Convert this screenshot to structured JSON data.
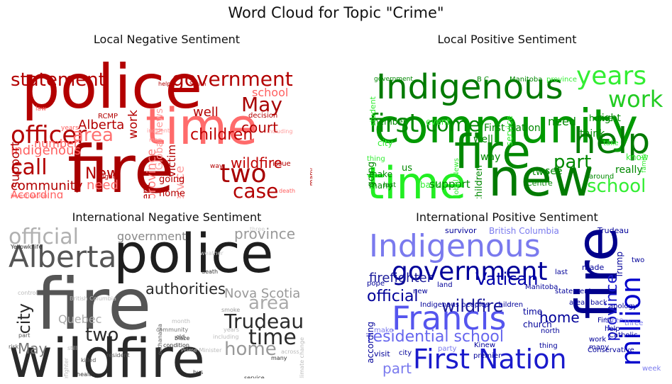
{
  "figure_title": "Word Cloud for Topic \"Crime\"",
  "panels": [
    {
      "title": "Local Negative Sentiment",
      "words": [
        {
          "t": "police",
          "c": "#b30000"
        },
        {
          "t": "time",
          "c": "#ff6b6b"
        },
        {
          "t": "fire",
          "c": "#a80000"
        },
        {
          "t": "officer",
          "c": "#b30000"
        },
        {
          "t": "government",
          "c": "#b30000"
        },
        {
          "t": "statement",
          "c": "#b30000"
        },
        {
          "t": "children",
          "c": "#c00000"
        },
        {
          "t": "area",
          "c": "#ff7070"
        },
        {
          "t": "May",
          "c": "#a80000"
        },
        {
          "t": "call",
          "c": "#b30000"
        },
        {
          "t": "two",
          "c": "#a80000"
        },
        {
          "t": "case",
          "c": "#b30000"
        },
        {
          "t": "community",
          "c": "#b30000"
        },
        {
          "t": "New",
          "c": "#b30000"
        },
        {
          "t": "Alberta",
          "c": "#b30000"
        },
        {
          "t": "Indigenous",
          "c": "#ff6060"
        },
        {
          "t": "school",
          "c": "#ff6060"
        },
        {
          "t": "well",
          "c": "#b30000"
        },
        {
          "t": "court",
          "c": "#b30000"
        },
        {
          "t": "wildfire",
          "c": "#c00000"
        },
        {
          "t": "support",
          "c": "#b30000"
        },
        {
          "t": "number",
          "c": "#ff6060"
        },
        {
          "t": "need",
          "c": "#ff7070"
        },
        {
          "t": "According",
          "c": "#ff6060"
        },
        {
          "t": "work",
          "c": "#b30000"
        },
        {
          "t": "Global News",
          "c": "#ff9a9a"
        },
        {
          "t": "victim",
          "c": "#b30000"
        },
        {
          "t": "Service",
          "c": "#ff9a9a"
        },
        {
          "t": "province",
          "c": "#ff8080"
        },
        {
          "t": "per cent",
          "c": "#b30000"
        },
        {
          "t": "public",
          "c": "#b30000"
        },
        {
          "t": "home",
          "c": "#b30000"
        },
        {
          "t": "going",
          "c": "#b30000"
        },
        {
          "t": "RCMP",
          "c": "#b30000"
        },
        {
          "t": "Smith",
          "c": "#b30000"
        },
        {
          "t": "help",
          "c": "#b30000"
        },
        {
          "t": "decision",
          "c": "#b30000"
        },
        {
          "t": "including",
          "c": "#ff9a9a"
        },
        {
          "t": "incident",
          "c": "#ff9a9a"
        },
        {
          "t": "man",
          "c": "#ff9a9a"
        },
        {
          "t": "law",
          "c": "#ff6060"
        },
        {
          "t": "years",
          "c": "#ff6060"
        },
        {
          "t": "right",
          "c": "#b30000"
        },
        {
          "t": "way",
          "c": "#b30000"
        },
        {
          "t": "issue",
          "c": "#b30000"
        },
        {
          "t": "many",
          "c": "#b30000"
        },
        {
          "t": "death",
          "c": "#ff6060"
        },
        {
          "t": "investigation",
          "c": "#ff6060"
        },
        {
          "t": "charge",
          "c": "#ff6060"
        },
        {
          "t": "B C",
          "c": "#ff6060"
        }
      ]
    },
    {
      "title": "Local Positive Sentiment",
      "words": [
        {
          "t": "community",
          "c": "#009900"
        },
        {
          "t": "Indigenous",
          "c": "#007a00"
        },
        {
          "t": "fire",
          "c": "#008800"
        },
        {
          "t": "new",
          "c": "#007a00"
        },
        {
          "t": "time",
          "c": "#22ee22"
        },
        {
          "t": "help",
          "c": "#007a00"
        },
        {
          "t": "years",
          "c": "#33ee33"
        },
        {
          "t": "work",
          "c": "#22cc22"
        },
        {
          "t": "first",
          "c": "#008800"
        },
        {
          "t": "come",
          "c": "#008800"
        },
        {
          "t": "part",
          "c": "#008800"
        },
        {
          "t": "school",
          "c": "#33ee33"
        },
        {
          "t": "need",
          "c": "#008800"
        },
        {
          "t": "right",
          "c": "#008800"
        },
        {
          "t": "think",
          "c": "#008800"
        },
        {
          "t": "really",
          "c": "#008800"
        },
        {
          "t": "know",
          "c": "#33ee33"
        },
        {
          "t": "First Nation",
          "c": "#008800"
        },
        {
          "t": "member",
          "c": "#008800"
        },
        {
          "t": "event",
          "c": "#33ee33"
        },
        {
          "t": "city",
          "c": "#33ee33"
        },
        {
          "t": "going",
          "c": "#008800"
        },
        {
          "t": "make",
          "c": "#008800"
        },
        {
          "t": "many",
          "c": "#008800"
        },
        {
          "t": "last",
          "c": "#008800"
        },
        {
          "t": "want",
          "c": "#33ee33"
        },
        {
          "t": "back",
          "c": "#33ee33"
        },
        {
          "t": "support",
          "c": "#008800"
        },
        {
          "t": "children",
          "c": "#008800"
        },
        {
          "t": "Global News",
          "c": "#33ee33"
        },
        {
          "t": "Calgary",
          "c": "#33ee33"
        },
        {
          "t": "us",
          "c": "#008800"
        },
        {
          "t": "way",
          "c": "#008800"
        },
        {
          "t": "well",
          "c": "#008800"
        },
        {
          "t": "two",
          "c": "#008800"
        },
        {
          "t": "see",
          "c": "#008800"
        },
        {
          "t": "Centre",
          "c": "#008800"
        },
        {
          "t": "around",
          "c": "#008800"
        },
        {
          "t": "take",
          "c": "#33ee33"
        },
        {
          "t": "family",
          "c": "#33ee33"
        },
        {
          "t": "home",
          "c": "#008800"
        },
        {
          "t": "service",
          "c": "#33ee33"
        },
        {
          "t": "government",
          "c": "#008800"
        },
        {
          "t": "B C",
          "c": "#008800"
        },
        {
          "t": "Manitoba",
          "c": "#008800"
        },
        {
          "t": "province",
          "c": "#33ee33"
        },
        {
          "t": "student",
          "c": "#33ee33"
        },
        {
          "t": "thing",
          "c": "#33ee33"
        }
      ]
    },
    {
      "title": "International Negative Sentiment",
      "words": [
        {
          "t": "wildfire",
          "c": "#2a2a2a"
        },
        {
          "t": "fire",
          "c": "#555555"
        },
        {
          "t": "police",
          "c": "#1e1e1e"
        },
        {
          "t": "Alberta",
          "c": "#555555"
        },
        {
          "t": "official",
          "c": "#b0b0b0"
        },
        {
          "t": "government",
          "c": "#888888"
        },
        {
          "t": "province",
          "c": "#999999"
        },
        {
          "t": "authorities",
          "c": "#2a2a2a"
        },
        {
          "t": "Nova Scotia",
          "c": "#999999"
        },
        {
          "t": "area",
          "c": "#aaaaaa"
        },
        {
          "t": "Trudeau",
          "c": "#2a2a2a"
        },
        {
          "t": "time",
          "c": "#2a2a2a"
        },
        {
          "t": "home",
          "c": "#999999"
        },
        {
          "t": "two",
          "c": "#2a2a2a"
        },
        {
          "t": "May",
          "c": "#777777"
        },
        {
          "t": "city",
          "c": "#2a2a2a"
        },
        {
          "t": "Quebec",
          "c": "#aaaaaa"
        },
        {
          "t": "Yellowknife",
          "c": "#333333"
        },
        {
          "t": "control",
          "c": "#bbbbbb"
        },
        {
          "t": "British Columbia",
          "c": "#bbbbbb"
        },
        {
          "t": "part",
          "c": "#555555"
        },
        {
          "t": "risk",
          "c": "#555555"
        },
        {
          "t": "still",
          "c": "#bbbbbb"
        },
        {
          "t": "killed",
          "c": "#555555"
        },
        {
          "t": "health",
          "c": "#333333"
        },
        {
          "t": "victim",
          "c": "#bbbbbb"
        },
        {
          "t": "firefighter",
          "c": "#bbbbbb"
        },
        {
          "t": "resident",
          "c": "#555555"
        },
        {
          "t": "euthanasia",
          "c": "#555555"
        },
        {
          "t": "condition",
          "c": "#333333"
        },
        {
          "t": "blaze",
          "c": "#333333"
        },
        {
          "t": "old",
          "c": "#333333"
        },
        {
          "t": "community",
          "c": "#777777"
        },
        {
          "t": "month",
          "c": "#bbbbbb"
        },
        {
          "t": "death",
          "c": "#333333"
        },
        {
          "t": "weather",
          "c": "#cccccc"
        },
        {
          "t": "smoke",
          "c": "#999999"
        },
        {
          "t": "years",
          "c": "#bbbbbb"
        },
        {
          "t": "including",
          "c": "#bbbbbb"
        },
        {
          "t": "Prime Minister",
          "c": "#bbbbbb"
        },
        {
          "t": "bus",
          "c": "#333333"
        },
        {
          "t": "across",
          "c": "#bbbbbb"
        },
        {
          "t": "many",
          "c": "#333333"
        },
        {
          "t": "service",
          "c": "#333333"
        },
        {
          "t": "new",
          "c": "#333333"
        },
        {
          "t": "federal",
          "c": "#333333"
        },
        {
          "t": "climate change",
          "c": "#bbbbbb"
        },
        {
          "t": "three",
          "c": "#cccccc"
        },
        {
          "t": "first",
          "c": "#cccccc"
        }
      ]
    },
    {
      "title": "International Positive Sentiment",
      "words": [
        {
          "t": "Indigenous",
          "c": "#7a7aee"
        },
        {
          "t": "fire",
          "c": "#00008b"
        },
        {
          "t": "government",
          "c": "#000099"
        },
        {
          "t": "Francis",
          "c": "#5555ee"
        },
        {
          "t": "First Nation",
          "c": "#1a1acc"
        },
        {
          "t": "million",
          "c": "#0000cc"
        },
        {
          "t": "residential school",
          "c": "#6666ee"
        },
        {
          "t": "official",
          "c": "#000099"
        },
        {
          "t": "wildfire",
          "c": "#1a1a99"
        },
        {
          "t": "Vatican",
          "c": "#0000aa"
        },
        {
          "t": "firefighter",
          "c": "#1a1a99"
        },
        {
          "t": "province",
          "c": "#1a1acc"
        },
        {
          "t": "home",
          "c": "#000099"
        },
        {
          "t": "part",
          "c": "#7a7aee"
        },
        {
          "t": "British Columbia",
          "c": "#7a7aee"
        },
        {
          "t": "survivor",
          "c": "#000099"
        },
        {
          "t": "Trudeau",
          "c": "#000099"
        },
        {
          "t": "Trump",
          "c": "#000099"
        },
        {
          "t": "pope",
          "c": "#000099"
        },
        {
          "t": "last",
          "c": "#000099"
        },
        {
          "t": "made",
          "c": "#000099"
        },
        {
          "t": "two",
          "c": "#000099"
        },
        {
          "t": "apology",
          "c": "#000099"
        },
        {
          "t": "three",
          "c": "#7a7aee"
        },
        {
          "t": "First",
          "c": "#000099"
        },
        {
          "t": "help",
          "c": "#000099"
        },
        {
          "t": "Catholic",
          "c": "#000099"
        },
        {
          "t": "many",
          "c": "#000099"
        },
        {
          "t": "work",
          "c": "#000099"
        },
        {
          "t": "Conservative",
          "c": "#000099"
        },
        {
          "t": "week",
          "c": "#7a7aee"
        },
        {
          "t": "according",
          "c": "#000099"
        },
        {
          "t": "make",
          "c": "#7a7aee"
        },
        {
          "t": "new",
          "c": "#000099"
        },
        {
          "t": "land",
          "c": "#000099"
        },
        {
          "t": "Indigenous peoples",
          "c": "#000099"
        },
        {
          "t": "children",
          "c": "#000099"
        },
        {
          "t": "time",
          "c": "#000099"
        },
        {
          "t": "Manitoba",
          "c": "#000099"
        },
        {
          "t": "statement",
          "c": "#000099"
        },
        {
          "t": "area",
          "c": "#000099"
        },
        {
          "t": "back",
          "c": "#000099"
        },
        {
          "t": "church",
          "c": "#000099"
        },
        {
          "t": "north",
          "c": "#000099"
        },
        {
          "t": "city",
          "c": "#000099"
        },
        {
          "t": "visit",
          "c": "#000099"
        },
        {
          "t": "party",
          "c": "#7a7aee"
        },
        {
          "t": "Kinew",
          "c": "#000099"
        },
        {
          "t": "premier",
          "c": "#000099"
        },
        {
          "t": "thing",
          "c": "#000099"
        },
        {
          "t": "three",
          "c": "#7a7aee"
        }
      ]
    }
  ]
}
